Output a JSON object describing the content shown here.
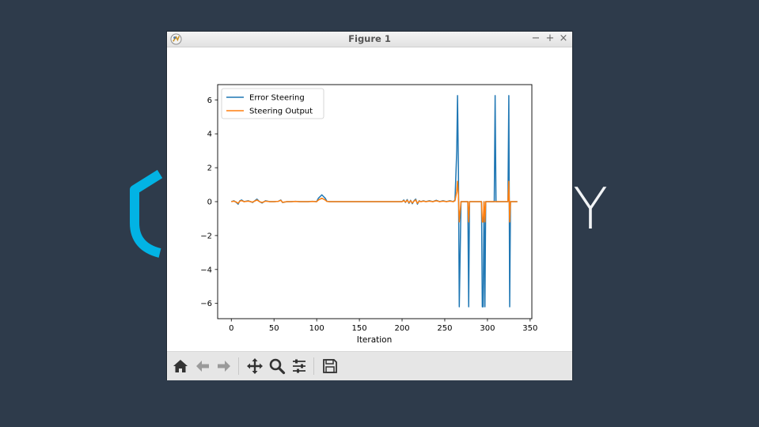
{
  "window": {
    "title": "Figure 1"
  },
  "background": {
    "brand_letter": "Y",
    "brand_color": "#02b3e4",
    "bg_color": "#2e3b4b"
  },
  "toolbar": {
    "buttons": [
      "home-icon",
      "back-icon",
      "forward-icon",
      "pan-icon",
      "zoom-icon",
      "configure-subplots-icon",
      "save-icon"
    ]
  },
  "chart_data": {
    "type": "line",
    "xlabel": "Iteration",
    "ylabel": "",
    "xlim": [
      -16,
      352
    ],
    "ylim": [
      -6.9,
      6.9
    ],
    "xticks": [
      0,
      50,
      100,
      150,
      200,
      250,
      300,
      350
    ],
    "yticks": [
      6,
      4,
      2,
      0,
      -2,
      -4,
      -6
    ],
    "ytick_labels": [
      "6",
      "4",
      "2",
      "0",
      "−2",
      "−4",
      "−6"
    ],
    "legend_position": "top-left",
    "series": [
      {
        "name": "Error Steering",
        "color": "#1f77b4",
        "x": [
          0,
          3,
          6,
          8,
          10,
          12,
          15,
          20,
          25,
          30,
          33,
          36,
          40,
          45,
          50,
          55,
          58,
          60,
          65,
          70,
          75,
          80,
          85,
          90,
          95,
          100,
          102,
          104,
          106,
          108,
          110,
          112,
          115,
          120,
          130,
          140,
          150,
          160,
          170,
          180,
          190,
          200,
          202,
          204,
          206,
          208,
          210,
          212,
          214,
          216,
          218,
          220,
          222,
          225,
          228,
          232,
          236,
          240,
          244,
          248,
          252,
          256,
          260,
          262,
          264,
          265,
          266,
          267,
          269,
          272,
          275,
          277,
          278,
          279,
          281,
          285,
          290,
          293,
          294,
          295,
          296,
          297,
          298,
          300,
          305,
          308,
          309,
          310,
          311,
          312,
          315,
          320,
          324,
          325,
          326,
          327,
          328,
          330,
          335
        ],
        "y": [
          0,
          0.05,
          -0.05,
          -0.15,
          0.05,
          0.1,
          0,
          0.05,
          -0.05,
          0.15,
          0,
          -0.08,
          0.05,
          0,
          0,
          0.02,
          0.1,
          -0.05,
          0,
          0,
          0.02,
          0,
          0,
          0,
          0.02,
          0,
          0.2,
          0.3,
          0.4,
          0.3,
          0.2,
          0.02,
          0,
          0,
          0,
          0,
          0,
          0,
          0,
          0,
          0,
          0,
          0.1,
          -0.05,
          0.12,
          -0.1,
          0.08,
          -0.12,
          0.05,
          0.15,
          -0.15,
          0.05,
          0,
          0.05,
          0,
          0.05,
          0,
          0.08,
          0,
          0.05,
          0,
          0.05,
          0,
          0.1,
          3.0,
          6.25,
          2.0,
          -6.2,
          0,
          0,
          0,
          0,
          -6.2,
          0,
          0,
          0,
          0,
          0,
          -6.2,
          -6.2,
          0,
          -6.2,
          0,
          0,
          0,
          0,
          6.25,
          0,
          0,
          0,
          0,
          0,
          0,
          6.25,
          -6.2,
          0,
          0,
          0,
          0
        ]
      },
      {
        "name": "Steering Output",
        "color": "#ff7f0e",
        "x": [
          0,
          3,
          6,
          8,
          10,
          12,
          15,
          20,
          25,
          30,
          33,
          36,
          40,
          45,
          50,
          55,
          58,
          60,
          65,
          70,
          75,
          80,
          85,
          90,
          95,
          100,
          102,
          104,
          106,
          108,
          110,
          112,
          115,
          120,
          130,
          140,
          150,
          160,
          170,
          180,
          190,
          200,
          202,
          204,
          206,
          208,
          210,
          212,
          214,
          216,
          218,
          220,
          222,
          225,
          228,
          232,
          236,
          240,
          244,
          248,
          252,
          256,
          260,
          262,
          264,
          265,
          266,
          267,
          269,
          272,
          275,
          277,
          278,
          279,
          281,
          285,
          290,
          293,
          294,
          295,
          296,
          297,
          298,
          300,
          305,
          308,
          309,
          310,
          311,
          312,
          315,
          320,
          324,
          325,
          326,
          327,
          328,
          330,
          335
        ],
        "y": [
          0,
          0.03,
          -0.03,
          -0.1,
          0.03,
          0.06,
          0,
          0.03,
          -0.03,
          0.1,
          0,
          -0.05,
          0.03,
          0,
          0,
          0.02,
          0.08,
          -0.04,
          0,
          0,
          0.01,
          0,
          0,
          0,
          0.01,
          0,
          0.1,
          0.15,
          0.2,
          0.15,
          0.1,
          0.01,
          0,
          0,
          0,
          0,
          0,
          0,
          0,
          0,
          0,
          0,
          0.06,
          -0.03,
          0.08,
          -0.06,
          0.05,
          -0.08,
          0.03,
          0.1,
          -0.1,
          0.03,
          0,
          0.03,
          0,
          0.03,
          0,
          0.05,
          0,
          0.03,
          0,
          0.03,
          0,
          0.05,
          0.6,
          1.2,
          0.4,
          -1.2,
          0,
          0,
          0,
          0,
          -1.2,
          0,
          0,
          0,
          0,
          0,
          -1.2,
          -1.2,
          0,
          -1.2,
          0,
          0,
          0,
          0,
          0,
          0,
          0,
          0,
          0,
          0,
          0,
          1.2,
          -1.2,
          0,
          0,
          0,
          0
        ]
      }
    ]
  }
}
